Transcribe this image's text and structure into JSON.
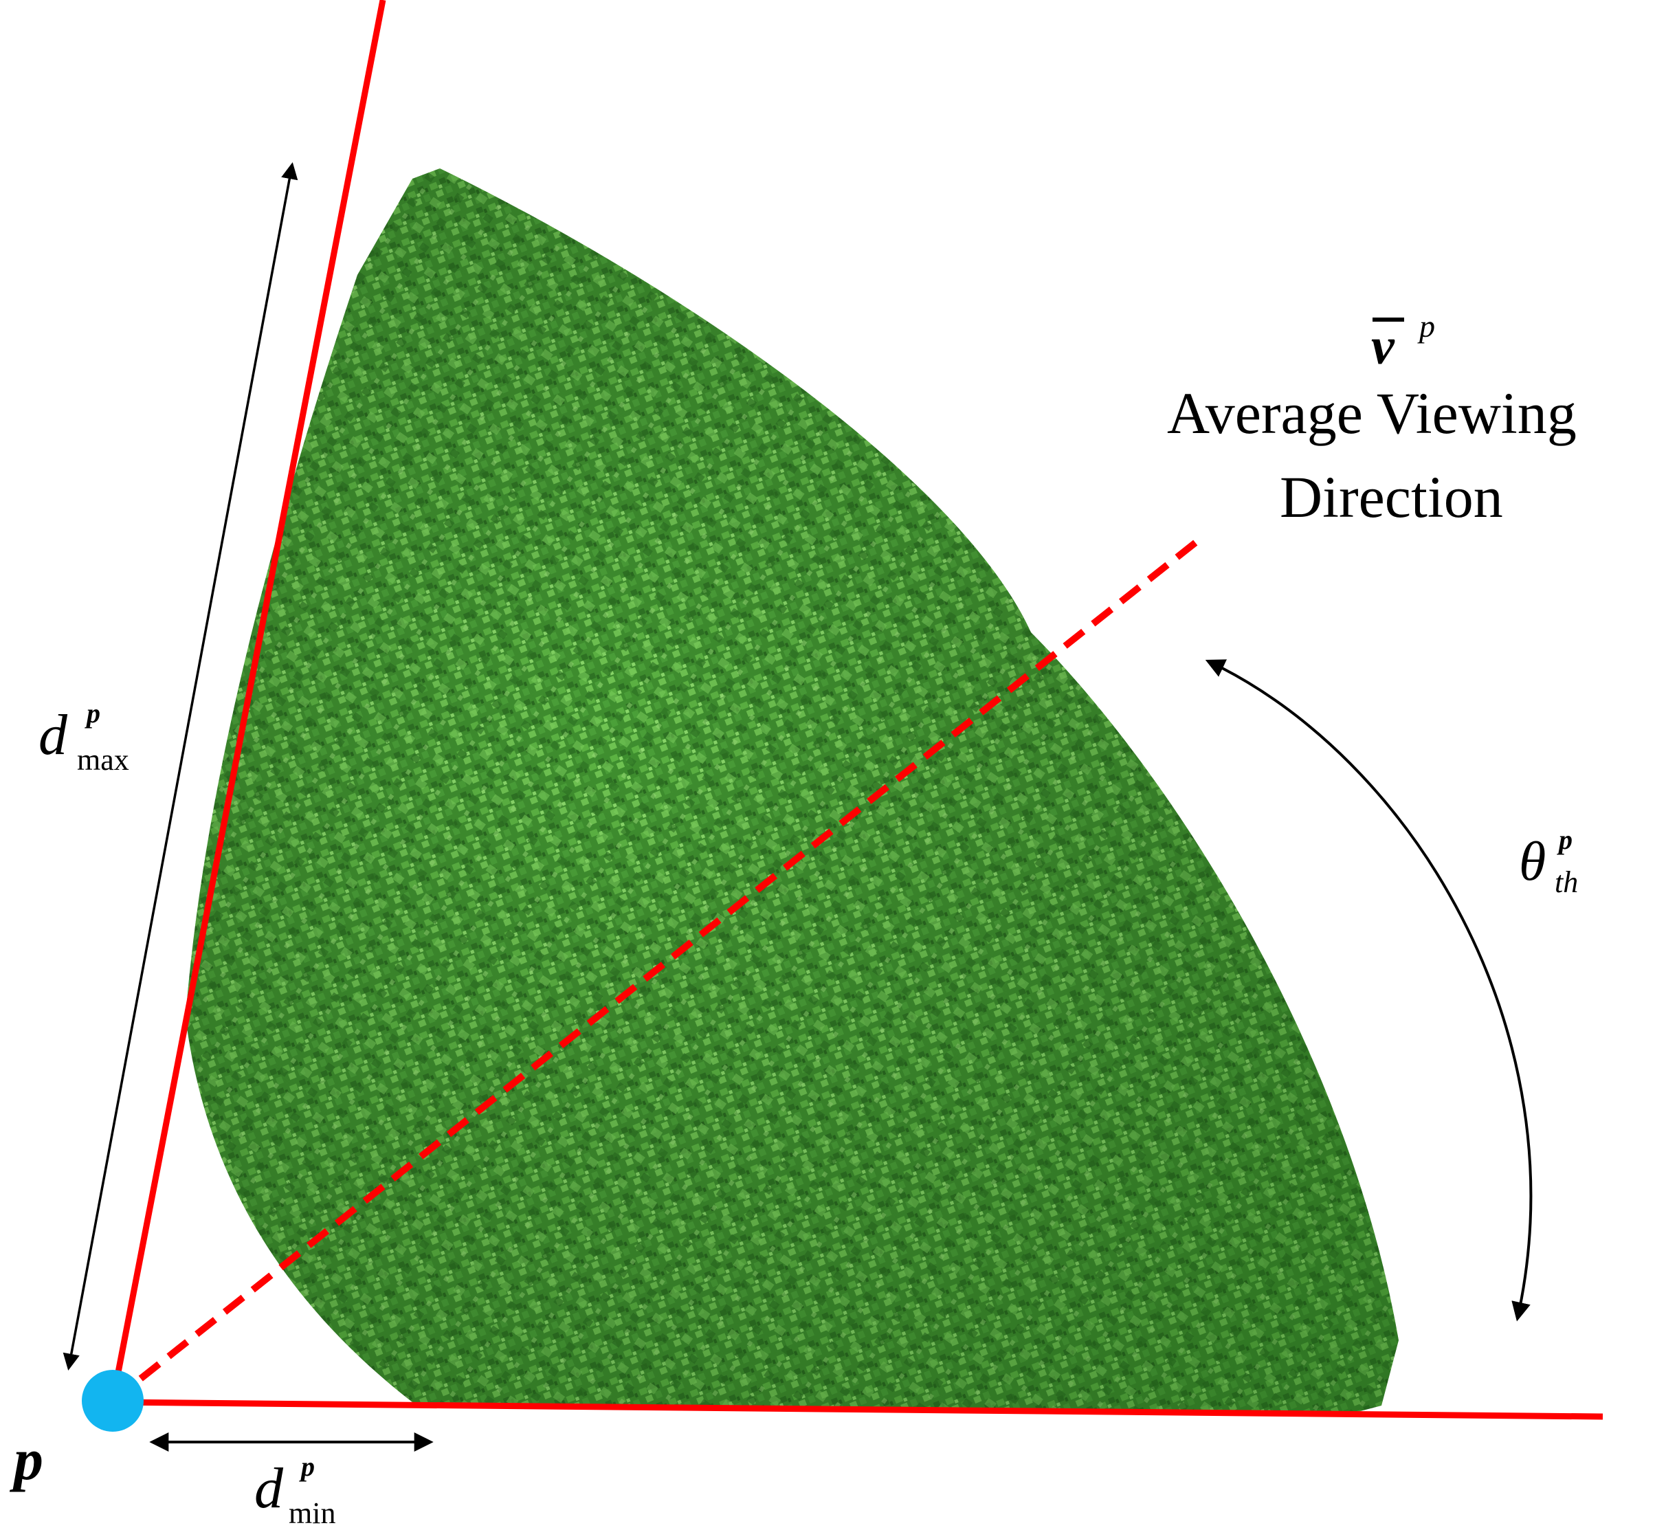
{
  "colors": {
    "boundary_red": "#ff0000",
    "viewpoint_blue": "#12b5f0",
    "volume_green_dark": "#3b8a2c",
    "volume_green_mid": "#4ea63a",
    "volume_green_light": "#7ccf5c",
    "arrow_black": "#000000"
  },
  "labels": {
    "point_p": "p",
    "v_bar_base": "v",
    "v_bar_sup": "p",
    "avg_line1": "Average Viewing",
    "avg_line2": "Direction",
    "dmax_base": "d",
    "dmax_sup": "p",
    "dmax_sub": "max",
    "dmin_base": "d",
    "dmin_sup": "p",
    "dmin_sub": "min",
    "theta_base": "θ",
    "theta_sup": "p",
    "theta_sub": "th"
  },
  "icons": {
    "dmax_arrow": "double-arrow-icon",
    "dmin_arrow": "double-arrow-icon",
    "theta_arrow": "curved-double-arrow-icon"
  }
}
